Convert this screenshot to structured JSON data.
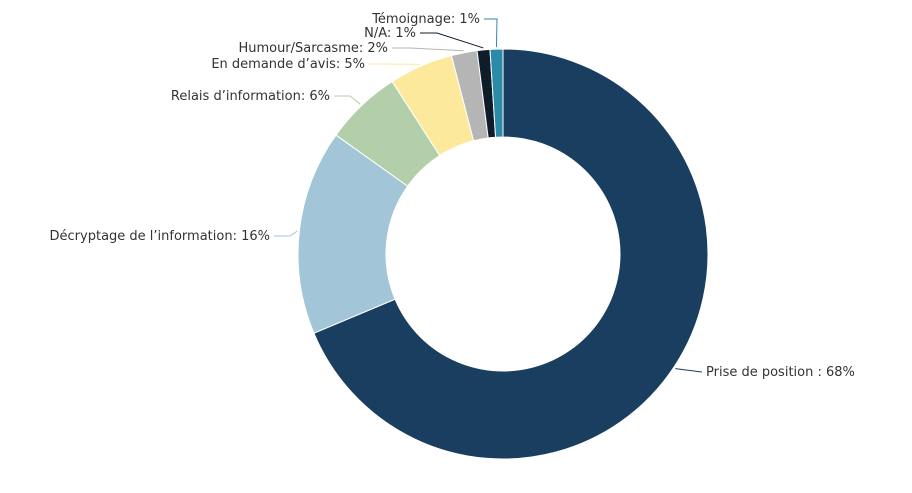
{
  "chart_data": {
    "type": "pie",
    "variant": "donut",
    "slices": [
      {
        "name": "Prise de position",
        "label": "Prise de position : 68%",
        "value": 68,
        "color": "#1a3e60"
      },
      {
        "name": "Décryptage de l’information",
        "label": "Décryptage de l’information: 16%",
        "value": 16,
        "color": "#a2c5d8"
      },
      {
        "name": "Relais d’information",
        "label": "Relais d’information: 6%",
        "value": 6,
        "color": "#b3cfaa"
      },
      {
        "name": "En demande d’avis",
        "label": "En demande d’avis: 5%",
        "value": 5,
        "color": "#fde99c"
      },
      {
        "name": "Humour/Sarcasme",
        "label": "Humour/Sarcasme: 2%",
        "value": 2,
        "color": "#b5b5b5"
      },
      {
        "name": "N/A",
        "label": "N/A: 1%",
        "value": 1,
        "color": "#0f1c2a"
      },
      {
        "name": "Témoignage",
        "label": "Témoignage: 1%",
        "value": 1,
        "color": "#2a8aa8"
      }
    ]
  }
}
